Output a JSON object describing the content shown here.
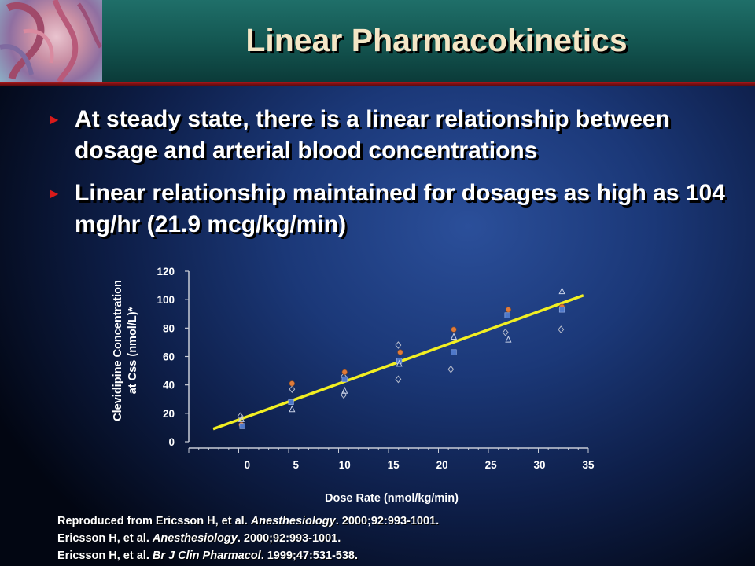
{
  "slide": {
    "title": "Linear Pharmacokinetics",
    "bullets": [
      {
        "text": "At steady state, there is a linear relationship between dosage and arterial blood concentrations"
      },
      {
        "text": "Linear relationship maintained for dosages as high as  104 mg/hr (21.9 mcg/kg/min)"
      }
    ],
    "references": [
      {
        "pre": "Reproduced from Ericsson H, et al. ",
        "journal": "Anesthesiology",
        "post": ". 2000;92:993-1001."
      },
      {
        "pre": "Ericsson H, et al. ",
        "journal": "Anesthesiology",
        "post": ". 2000;92:993-1001."
      },
      {
        "pre": "Ericsson H, et al. ",
        "journal": "Br J Clin Pharmacol",
        "post": ". 1999;47:531-538."
      }
    ]
  },
  "colors": {
    "bullet_marker": "#d71a1a",
    "title_text": "#f4e6c6",
    "fit_line": "#f2ef22",
    "series": [
      "#b7bccb",
      "#e07b3a",
      "#4f78c9",
      "#c9d2e8"
    ]
  },
  "chart_data": {
    "type": "scatter",
    "xlabel": "Dose Rate (nmol/kg/min)",
    "ylabel": [
      "Clevidipine Concentration",
      "at Css (nmol/L)*"
    ],
    "xticks": [
      0,
      5,
      10,
      15,
      20,
      25,
      30,
      35
    ],
    "yticks": [
      0,
      20,
      40,
      60,
      80,
      100,
      120
    ],
    "xlim": [
      -6,
      35
    ],
    "ylim": [
      0,
      120
    ],
    "grid": false,
    "legend": "none",
    "fit_line": {
      "x": [
        -3.5,
        34.5
      ],
      "y": [
        9,
        103
      ]
    },
    "series": [
      {
        "marker": "diamond",
        "color": "#b7bccb",
        "points": [
          [
            -0.7,
            18
          ],
          [
            4.6,
            37
          ],
          [
            9.9,
            33
          ],
          [
            9.9,
            46
          ],
          [
            15.5,
            44
          ],
          [
            15.5,
            68
          ],
          [
            20.9,
            51
          ],
          [
            26.5,
            77
          ],
          [
            32.2,
            79
          ]
        ]
      },
      {
        "marker": "circle",
        "color": "#e07b3a",
        "points": [
          [
            -0.6,
            12
          ],
          [
            4.6,
            41
          ],
          [
            10.0,
            49
          ],
          [
            15.7,
            63
          ],
          [
            21.2,
            79
          ],
          [
            26.8,
            93
          ],
          [
            32.3,
            95
          ]
        ]
      },
      {
        "marker": "square",
        "color": "#4f78c9",
        "points": [
          [
            -0.5,
            11
          ],
          [
            4.5,
            28
          ],
          [
            10.0,
            44
          ],
          [
            15.6,
            57
          ],
          [
            21.2,
            63
          ],
          [
            26.7,
            89
          ],
          [
            32.3,
            93
          ]
        ]
      },
      {
        "marker": "triangle",
        "color": "#c9d2e8",
        "points": [
          [
            -0.6,
            16
          ],
          [
            4.6,
            23
          ],
          [
            10.0,
            36
          ],
          [
            15.6,
            55
          ],
          [
            21.2,
            74
          ],
          [
            26.8,
            72
          ],
          [
            32.3,
            106
          ]
        ]
      }
    ]
  }
}
